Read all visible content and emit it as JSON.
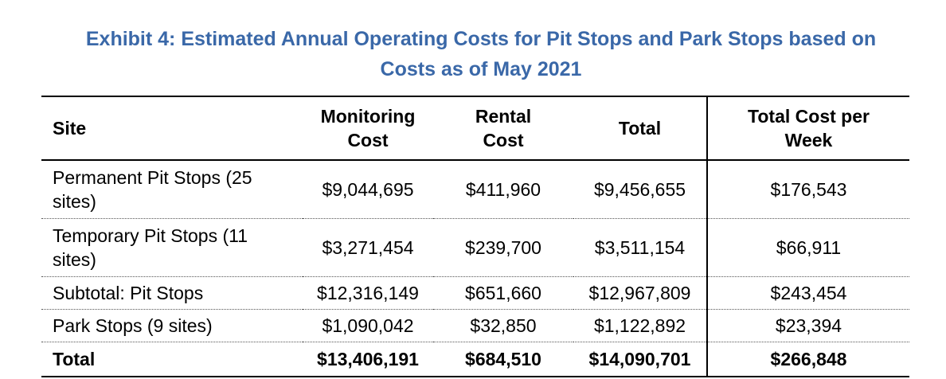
{
  "title": {
    "line1": "Exhibit 4: Estimated Annual Operating Costs for Pit Stops and Park Stops based on",
    "line2": "Costs as of May 2021"
  },
  "table": {
    "headers": {
      "site": "Site",
      "monitoring": [
        "Monitoring",
        "Cost"
      ],
      "rental": [
        "Rental",
        "Cost"
      ],
      "total": "Total",
      "per_week": [
        "Total Cost per",
        "Week"
      ]
    },
    "rows": [
      {
        "site": [
          "Permanent Pit Stops (25",
          "sites)"
        ],
        "monitoring": "$9,044,695",
        "rental": "$411,960",
        "total": "$9,456,655",
        "per_week": "$176,543"
      },
      {
        "site": [
          "Temporary Pit Stops (11",
          "sites)"
        ],
        "monitoring": "$3,271,454",
        "rental": "$239,700",
        "total": "$3,511,154",
        "per_week": "$66,911"
      },
      {
        "site": [
          "Subtotal: Pit Stops"
        ],
        "monitoring": "$12,316,149",
        "rental": "$651,660",
        "total": "$12,967,809",
        "per_week": "$243,454"
      },
      {
        "site": [
          "Park Stops (9 sites)"
        ],
        "monitoring": "$1,090,042",
        "rental": "$32,850",
        "total": "$1,122,892",
        "per_week": "$23,394"
      },
      {
        "site": [
          "Total"
        ],
        "monitoring": "$13,406,191",
        "rental": "$684,510",
        "total": "$14,090,701",
        "per_week": "$266,848"
      }
    ]
  },
  "colors": {
    "title": "#3a68a8",
    "text": "#000000",
    "rule": "#000000"
  }
}
